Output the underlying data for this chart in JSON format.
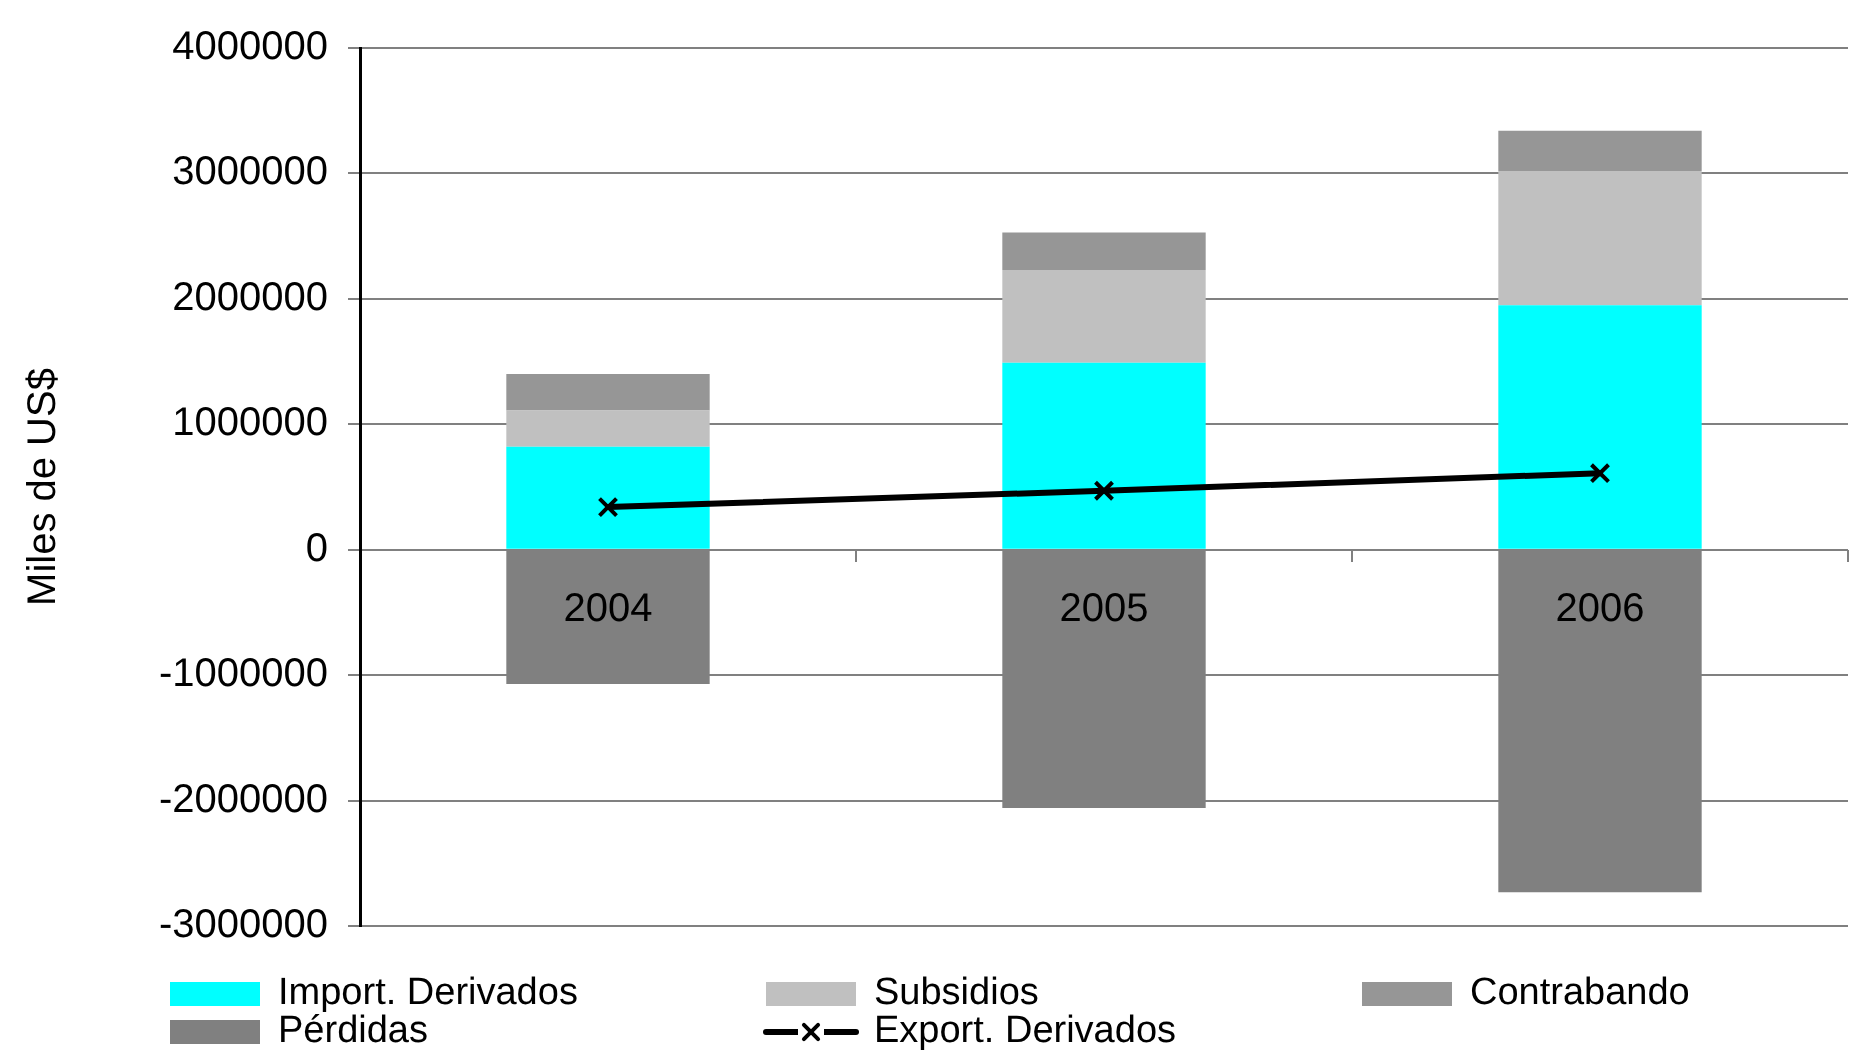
{
  "chart_data": {
    "type": "bar",
    "ylabel": "Miles de US$",
    "categories": [
      "2004",
      "2005",
      "2006"
    ],
    "stacked": true,
    "series": [
      {
        "name": "Import. Derivados",
        "color": "#00ffff",
        "values": [
          820000,
          1490000,
          1950000
        ]
      },
      {
        "name": "Subsidios",
        "color": "#c0c0c0",
        "values": [
          290000,
          740000,
          1070000
        ]
      },
      {
        "name": "Contrabando",
        "color": "#969696",
        "values": [
          290000,
          300000,
          320000
        ]
      },
      {
        "name": "Pérdidas",
        "color": "#808080",
        "values": [
          -1070000,
          -2060000,
          -2730000
        ]
      },
      {
        "name": "Export. Derivados",
        "type": "line",
        "color": "#000000",
        "values": [
          340000,
          470000,
          610000
        ]
      }
    ],
    "ylim": [
      -3000000,
      4000000
    ],
    "yticks": [
      -3000000,
      -2000000,
      -1000000,
      0,
      1000000,
      2000000,
      3000000,
      4000000
    ],
    "grid": "y",
    "legend": "bottom",
    "marker": "cross",
    "line_style": "solid"
  }
}
